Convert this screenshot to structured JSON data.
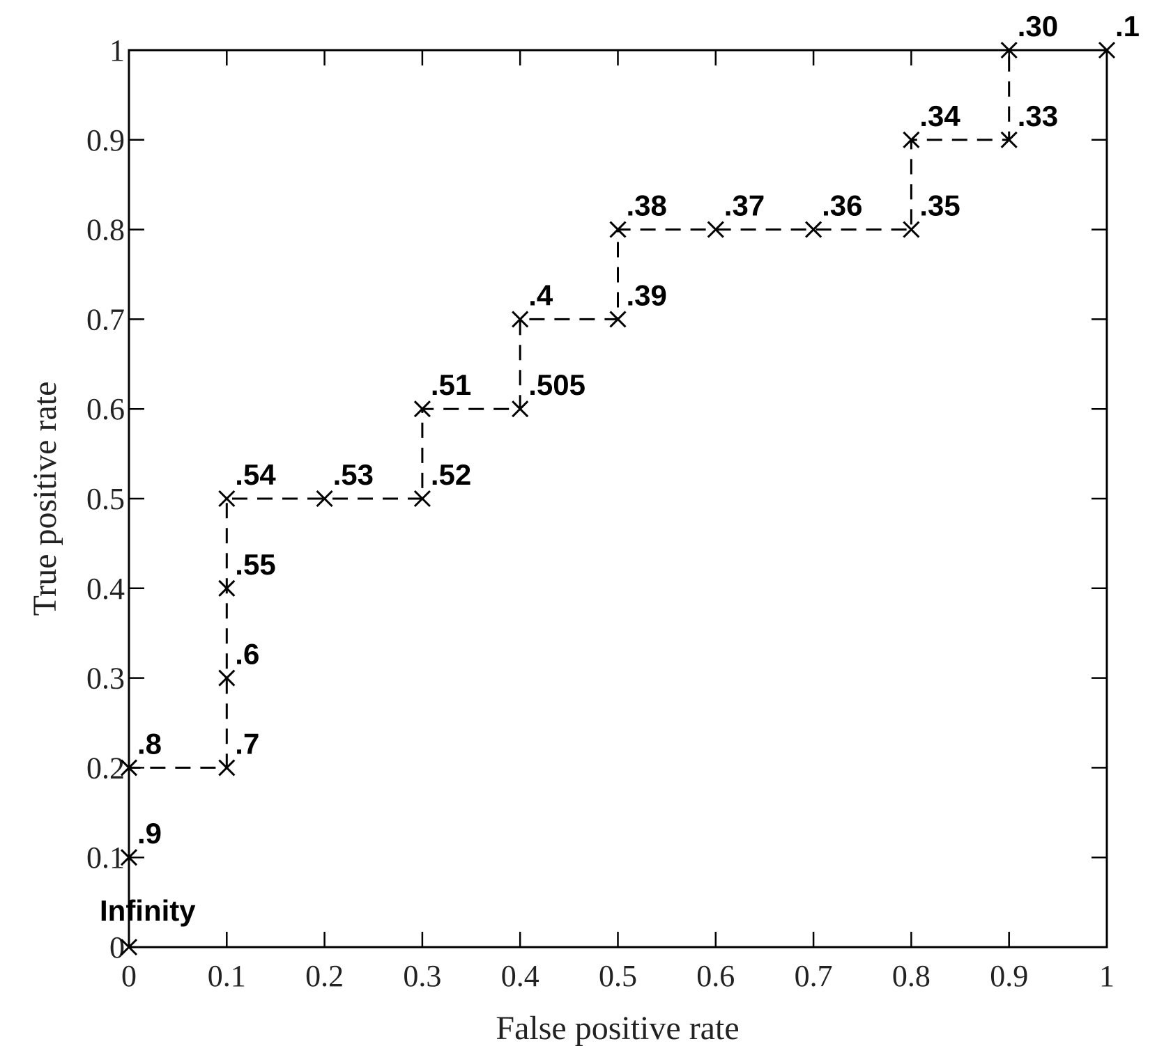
{
  "chart_data": {
    "type": "line",
    "title": "",
    "xlabel": "False positive rate",
    "ylabel": "True positive rate",
    "xlim": [
      0,
      1
    ],
    "ylim": [
      0,
      1
    ],
    "grid": false,
    "x_ticks": [
      "0",
      "0.1",
      "0.2",
      "0.3",
      "0.4",
      "0.5",
      "0.6",
      "0.7",
      "0.8",
      "0.9",
      "1"
    ],
    "y_ticks": [
      "0",
      "0.1",
      "0.2",
      "0.3",
      "0.4",
      "0.5",
      "0.6",
      "0.7",
      "0.8",
      "0.9",
      "1"
    ],
    "series": [
      {
        "line_style": "dashed",
        "marker": "x",
        "points": [
          {
            "x": 0.0,
            "y": 0.0,
            "label": "Infinity"
          },
          {
            "x": 0.0,
            "y": 0.1,
            "label": ".9"
          },
          {
            "x": 0.0,
            "y": 0.2,
            "label": ".8"
          },
          {
            "x": 0.1,
            "y": 0.2,
            "label": ".7"
          },
          {
            "x": 0.1,
            "y": 0.3,
            "label": ".6"
          },
          {
            "x": 0.1,
            "y": 0.4,
            "label": ".55"
          },
          {
            "x": 0.1,
            "y": 0.5,
            "label": ".54"
          },
          {
            "x": 0.2,
            "y": 0.5,
            "label": ".53"
          },
          {
            "x": 0.3,
            "y": 0.5,
            "label": ".52"
          },
          {
            "x": 0.3,
            "y": 0.6,
            "label": ".51"
          },
          {
            "x": 0.4,
            "y": 0.6,
            "label": ".505"
          },
          {
            "x": 0.4,
            "y": 0.7,
            "label": ".4"
          },
          {
            "x": 0.5,
            "y": 0.7,
            "label": ".39"
          },
          {
            "x": 0.5,
            "y": 0.8,
            "label": ".38"
          },
          {
            "x": 0.6,
            "y": 0.8,
            "label": ".37"
          },
          {
            "x": 0.7,
            "y": 0.8,
            "label": ".36"
          },
          {
            "x": 0.8,
            "y": 0.8,
            "label": ".35"
          },
          {
            "x": 0.8,
            "y": 0.9,
            "label": ".34"
          },
          {
            "x": 0.9,
            "y": 0.9,
            "label": ".33"
          },
          {
            "x": 0.9,
            "y": 1.0,
            "label": ".30"
          },
          {
            "x": 1.0,
            "y": 1.0,
            "label": ".1"
          }
        ]
      }
    ]
  }
}
